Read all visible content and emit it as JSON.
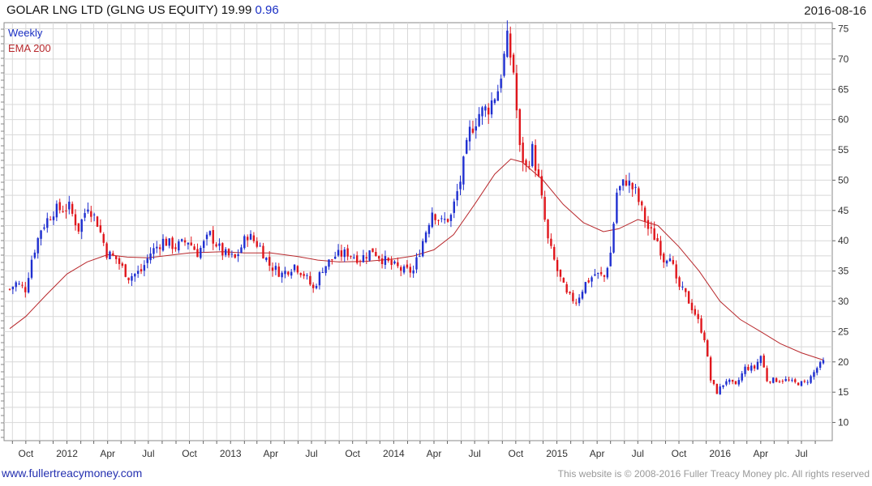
{
  "header": {
    "title": "GOLAR LNG LTD (GLNG US EQUITY)",
    "last": "19.99",
    "change": "0.96",
    "date": "2016-08-16"
  },
  "footer": {
    "url": "www.fullertreacymoney.com",
    "copyright": "This website is © 2008-2016 Fuller Treacy Money plc. All rights reserved"
  },
  "colors": {
    "up": "#1f2fd0",
    "down": "#e0161c",
    "ema": "#b8282c",
    "grid": "#d8d8d8"
  },
  "chart_data": {
    "type": "candlestick",
    "legend": [
      "Weekly",
      "EMA 200"
    ],
    "legend_position": "top-left",
    "grid": true,
    "y_axis_side": "right",
    "ylim": [
      7,
      76
    ],
    "y_ticks": [
      10,
      15,
      20,
      25,
      30,
      35,
      40,
      45,
      50,
      55,
      60,
      65,
      70,
      75
    ],
    "x_range": [
      "2011-08-26",
      "2016-08-19"
    ],
    "x_ticks": [
      {
        "label": "Oct",
        "date": "2011-10-01"
      },
      {
        "label": "2012",
        "date": "2012-01-01"
      },
      {
        "label": "Apr",
        "date": "2012-04-01"
      },
      {
        "label": "Jul",
        "date": "2012-07-01"
      },
      {
        "label": "Oct",
        "date": "2012-10-01"
      },
      {
        "label": "2013",
        "date": "2013-01-01"
      },
      {
        "label": "Apr",
        "date": "2013-04-01"
      },
      {
        "label": "Jul",
        "date": "2013-07-01"
      },
      {
        "label": "Oct",
        "date": "2013-10-01"
      },
      {
        "label": "2014",
        "date": "2014-01-01"
      },
      {
        "label": "Apr",
        "date": "2014-04-01"
      },
      {
        "label": "Jul",
        "date": "2014-07-01"
      },
      {
        "label": "Oct",
        "date": "2014-10-01"
      },
      {
        "label": "2015",
        "date": "2015-01-01"
      },
      {
        "label": "Apr",
        "date": "2015-04-01"
      },
      {
        "label": "Jul",
        "date": "2015-07-01"
      },
      {
        "label": "Oct",
        "date": "2015-10-01"
      },
      {
        "label": "2016",
        "date": "2016-01-01"
      },
      {
        "label": "Apr",
        "date": "2016-04-01"
      },
      {
        "label": "Jul",
        "date": "2016-07-01"
      }
    ],
    "close_anchors": [
      [
        "2011-08-26",
        32
      ],
      [
        "2011-09-09",
        33
      ],
      [
        "2011-09-30",
        32
      ],
      [
        "2011-10-14",
        37
      ],
      [
        "2011-11-04",
        42
      ],
      [
        "2011-12-02",
        45
      ],
      [
        "2012-01-06",
        45.5
      ],
      [
        "2012-01-27",
        42
      ],
      [
        "2012-02-17",
        46
      ],
      [
        "2012-03-09",
        43
      ],
      [
        "2012-03-30",
        38
      ],
      [
        "2012-04-20",
        37
      ],
      [
        "2012-05-18",
        34
      ],
      [
        "2012-06-15",
        35
      ],
      [
        "2012-07-06",
        38
      ],
      [
        "2012-08-03",
        40
      ],
      [
        "2012-08-31",
        39
      ],
      [
        "2012-09-28",
        40
      ],
      [
        "2012-10-19",
        38
      ],
      [
        "2012-11-16",
        41
      ],
      [
        "2012-12-14",
        38
      ],
      [
        "2013-01-11",
        37
      ],
      [
        "2013-02-08",
        41
      ],
      [
        "2013-03-08",
        39
      ],
      [
        "2013-03-29",
        36
      ],
      [
        "2013-04-26",
        34.5
      ],
      [
        "2013-05-24",
        36
      ],
      [
        "2013-06-14",
        34.5
      ],
      [
        "2013-07-05",
        32
      ],
      [
        "2013-07-26",
        35.5
      ],
      [
        "2013-08-23",
        37.5
      ],
      [
        "2013-09-20",
        38
      ],
      [
        "2013-10-18",
        37
      ],
      [
        "2013-11-15",
        38.5
      ],
      [
        "2013-12-06",
        37
      ],
      [
        "2013-12-27",
        36
      ],
      [
        "2014-01-24",
        35
      ],
      [
        "2014-02-14",
        35
      ],
      [
        "2014-03-07",
        40
      ],
      [
        "2014-03-28",
        45
      ],
      [
        "2014-04-18",
        43
      ],
      [
        "2014-05-09",
        44
      ],
      [
        "2014-05-30",
        50
      ],
      [
        "2014-06-20",
        58
      ],
      [
        "2014-07-11",
        61
      ],
      [
        "2014-08-01",
        62
      ],
      [
        "2014-08-22",
        65
      ],
      [
        "2014-09-12",
        73
      ],
      [
        "2014-09-26",
        68
      ],
      [
        "2014-10-10",
        55
      ],
      [
        "2014-10-24",
        52
      ],
      [
        "2014-11-07",
        55
      ],
      [
        "2014-11-21",
        50
      ],
      [
        "2014-12-12",
        40
      ],
      [
        "2015-01-02",
        35
      ],
      [
        "2015-01-23",
        31
      ],
      [
        "2015-02-13",
        30
      ],
      [
        "2015-03-06",
        33
      ],
      [
        "2015-03-27",
        34.5
      ],
      [
        "2015-04-17",
        34
      ],
      [
        "2015-05-01",
        38
      ],
      [
        "2015-05-15",
        48
      ],
      [
        "2015-06-05",
        50
      ],
      [
        "2015-06-26",
        48
      ],
      [
        "2015-07-10",
        45
      ],
      [
        "2015-07-24",
        42
      ],
      [
        "2015-08-14",
        40
      ],
      [
        "2015-08-28",
        37
      ],
      [
        "2015-09-11",
        38
      ],
      [
        "2015-09-25",
        33
      ],
      [
        "2015-10-16",
        31
      ],
      [
        "2015-11-06",
        28
      ],
      [
        "2015-11-27",
        24
      ],
      [
        "2015-12-11",
        17
      ],
      [
        "2015-12-25",
        15
      ],
      [
        "2016-01-15",
        17
      ],
      [
        "2016-02-05",
        16
      ],
      [
        "2016-02-26",
        19
      ],
      [
        "2016-03-18",
        19
      ],
      [
        "2016-04-01",
        21
      ],
      [
        "2016-04-15",
        17
      ],
      [
        "2016-05-06",
        17
      ],
      [
        "2016-05-27",
        17
      ],
      [
        "2016-06-17",
        16.5
      ],
      [
        "2016-07-08",
        16.5
      ],
      [
        "2016-07-22",
        17.5
      ],
      [
        "2016-08-05",
        19
      ],
      [
        "2016-08-19",
        20
      ]
    ],
    "ema_200": [
      [
        "2011-08-26",
        25.5
      ],
      [
        "2011-10-01",
        27.5
      ],
      [
        "2011-11-15",
        31
      ],
      [
        "2012-01-01",
        34.5
      ],
      [
        "2012-02-15",
        36.5
      ],
      [
        "2012-04-01",
        37.7
      ],
      [
        "2012-05-15",
        37.3
      ],
      [
        "2012-07-01",
        37.2
      ],
      [
        "2012-10-01",
        38
      ],
      [
        "2012-12-15",
        38.2
      ],
      [
        "2013-02-01",
        38
      ],
      [
        "2013-04-01",
        38
      ],
      [
        "2013-06-01",
        37.4
      ],
      [
        "2013-07-15",
        36.8
      ],
      [
        "2013-09-01",
        36.5
      ],
      [
        "2013-11-01",
        36.6
      ],
      [
        "2014-01-01",
        37
      ],
      [
        "2014-02-15",
        37.5
      ],
      [
        "2014-04-01",
        38.5
      ],
      [
        "2014-05-15",
        41
      ],
      [
        "2014-07-01",
        46
      ],
      [
        "2014-08-15",
        51
      ],
      [
        "2014-09-20",
        53.5
      ],
      [
        "2014-10-15",
        53
      ],
      [
        "2014-12-01",
        50
      ],
      [
        "2015-01-15",
        46
      ],
      [
        "2015-03-01",
        43
      ],
      [
        "2015-04-15",
        41.5
      ],
      [
        "2015-05-20",
        42
      ],
      [
        "2015-07-01",
        43.5
      ],
      [
        "2015-08-15",
        42.5
      ],
      [
        "2015-10-01",
        39
      ],
      [
        "2015-11-15",
        35
      ],
      [
        "2016-01-01",
        30
      ],
      [
        "2016-02-15",
        27
      ],
      [
        "2016-04-01",
        25
      ],
      [
        "2016-05-15",
        23
      ],
      [
        "2016-07-01",
        21.5
      ],
      [
        "2016-08-19",
        20.3
      ]
    ]
  }
}
